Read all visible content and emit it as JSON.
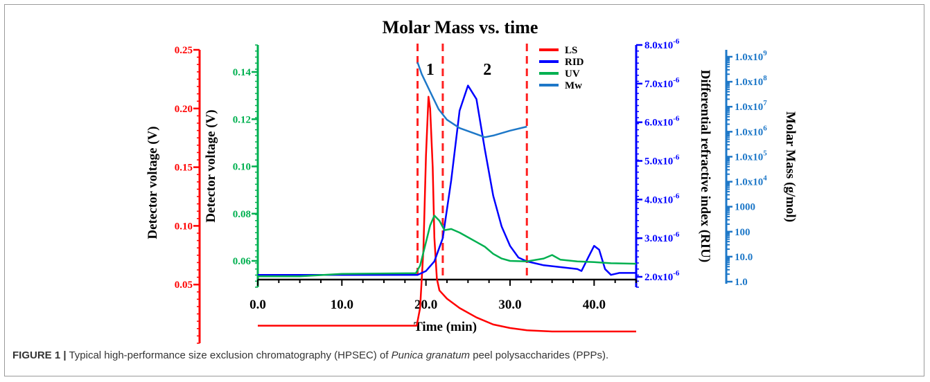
{
  "chart_data": {
    "type": "line",
    "title": "Molar Mass vs. time",
    "xlabel": "Time (min)",
    "x_ticks": [
      "0.0",
      "10.0",
      "20.0",
      "30.0",
      "40.0"
    ],
    "xlim": [
      0,
      45
    ],
    "axes": [
      {
        "id": "ls",
        "label": "Detector voltage (V)",
        "color": "#ff0000",
        "range": [
          0.0,
          0.25
        ],
        "ticks": [
          {
            "v": 0.25,
            "t": "0.25"
          },
          {
            "v": 0.2,
            "t": "0.20"
          },
          {
            "v": 0.15,
            "t": "0.15"
          },
          {
            "v": 0.1,
            "t": "0.10"
          },
          {
            "v": 0.05,
            "t": "0.05"
          }
        ]
      },
      {
        "id": "uv",
        "label": "Detector voltage (V)",
        "color": "#00b050",
        "range": [
          0.05,
          0.15
        ],
        "ticks": [
          {
            "v": 0.14,
            "t": "0.14"
          },
          {
            "v": 0.12,
            "t": "0.12"
          },
          {
            "v": 0.1,
            "t": "0.10"
          },
          {
            "v": 0.08,
            "t": "0.08"
          },
          {
            "v": 0.06,
            "t": "0.06"
          }
        ]
      },
      {
        "id": "rid",
        "label": "Differential refractive index (RIU)",
        "color": "#0000ff",
        "range": [
          1.8e-06,
          8e-06
        ],
        "ticks": [
          {
            "v": 8e-06,
            "t": "8.0x10",
            "e": "-6"
          },
          {
            "v": 7e-06,
            "t": "7.0x10",
            "e": "-6"
          },
          {
            "v": 6e-06,
            "t": "6.0x10",
            "e": "-6"
          },
          {
            "v": 5e-06,
            "t": "5.0x10",
            "e": "-6"
          },
          {
            "v": 4e-06,
            "t": "4.0x10",
            "e": "-6"
          },
          {
            "v": 3e-06,
            "t": "3.0x10",
            "e": "-6"
          },
          {
            "v": 2e-06,
            "t": "2.0x10",
            "e": "-6"
          }
        ]
      },
      {
        "id": "mw",
        "label": "Molar Mass (g/mol)",
        "color": "#1e78c8",
        "scale": "log",
        "range": [
          1,
          1000000000
        ],
        "ticks": [
          {
            "v": 1000000000,
            "t": "1.0x10",
            "e": "9"
          },
          {
            "v": 100000000,
            "t": "1.0x10",
            "e": "8"
          },
          {
            "v": 10000000,
            "t": "1.0x10",
            "e": "7"
          },
          {
            "v": 1000000,
            "t": "1.0x10",
            "e": "6"
          },
          {
            "v": 100000,
            "t": "1.0x10",
            "e": "5"
          },
          {
            "v": 10000,
            "t": "1.0x10",
            "e": "4"
          },
          {
            "v": 1000,
            "t": "1000"
          },
          {
            "v": 100,
            "t": "100"
          },
          {
            "v": 10,
            "t": "10.0"
          },
          {
            "v": 1,
            "t": "1.0"
          }
        ]
      }
    ],
    "regions": [
      {
        "x": 19.0,
        "label": "1"
      },
      {
        "x": 22.0,
        "label": "2"
      },
      {
        "x": 32.0
      }
    ],
    "region_labels": [
      {
        "x": 20.5,
        "text": "1"
      },
      {
        "x": 27.3,
        "text": "2"
      }
    ],
    "series": [
      {
        "name": "LS",
        "axis": "ls",
        "color": "#ff0000",
        "points": [
          [
            0,
            0.015
          ],
          [
            18.9,
            0.015
          ],
          [
            19.3,
            0.03
          ],
          [
            19.7,
            0.08
          ],
          [
            20.0,
            0.16
          ],
          [
            20.3,
            0.21
          ],
          [
            20.5,
            0.2
          ],
          [
            20.8,
            0.15
          ],
          [
            21.0,
            0.09
          ],
          [
            21.3,
            0.055
          ],
          [
            21.6,
            0.045
          ],
          [
            22.5,
            0.038
          ],
          [
            24,
            0.03
          ],
          [
            26,
            0.022
          ],
          [
            28,
            0.016
          ],
          [
            30,
            0.013
          ],
          [
            32,
            0.011
          ],
          [
            35,
            0.01
          ],
          [
            40,
            0.01
          ],
          [
            45,
            0.01
          ]
        ]
      },
      {
        "name": "RID",
        "axis": "rid",
        "color": "#0000ff",
        "points": [
          [
            0,
            2.05e-06
          ],
          [
            19,
            2.05e-06
          ],
          [
            20,
            2.15e-06
          ],
          [
            21,
            2.4e-06
          ],
          [
            22,
            3e-06
          ],
          [
            23,
            4.5e-06
          ],
          [
            24,
            6.3e-06
          ],
          [
            25,
            6.95e-06
          ],
          [
            26,
            6.6e-06
          ],
          [
            27,
            5.3e-06
          ],
          [
            28,
            4.1e-06
          ],
          [
            29,
            3.3e-06
          ],
          [
            30,
            2.8e-06
          ],
          [
            31,
            2.5e-06
          ],
          [
            32,
            2.4e-06
          ],
          [
            34,
            2.3e-06
          ],
          [
            36,
            2.25e-06
          ],
          [
            38,
            2.2e-06
          ],
          [
            38.5,
            2.15e-06
          ],
          [
            39.3,
            2.5e-06
          ],
          [
            40,
            2.8e-06
          ],
          [
            40.6,
            2.7e-06
          ],
          [
            41.3,
            2.2e-06
          ],
          [
            42,
            2.05e-06
          ],
          [
            43,
            2.1e-06
          ],
          [
            45,
            2.1e-06
          ]
        ]
      },
      {
        "name": "UV",
        "axis": "uv",
        "color": "#00b050",
        "points": [
          [
            0,
            0.0535
          ],
          [
            5,
            0.0535
          ],
          [
            10,
            0.0545
          ],
          [
            18.8,
            0.0548
          ],
          [
            19.3,
            0.058
          ],
          [
            19.8,
            0.065
          ],
          [
            20.5,
            0.075
          ],
          [
            21,
            0.0792
          ],
          [
            21.6,
            0.077
          ],
          [
            22.2,
            0.073
          ],
          [
            23,
            0.0735
          ],
          [
            24,
            0.072
          ],
          [
            25,
            0.07
          ],
          [
            26,
            0.068
          ],
          [
            27,
            0.066
          ],
          [
            28,
            0.063
          ],
          [
            29,
            0.061
          ],
          [
            30,
            0.06
          ],
          [
            32,
            0.0598
          ],
          [
            34,
            0.061
          ],
          [
            35,
            0.0625
          ],
          [
            36,
            0.0605
          ],
          [
            38,
            0.0598
          ],
          [
            40,
            0.0595
          ],
          [
            42,
            0.059
          ],
          [
            45,
            0.0588
          ]
        ]
      },
      {
        "name": "Mw",
        "axis": "mw",
        "color": "#1e78c8",
        "points": [
          [
            19.0,
            600000000
          ],
          [
            19.5,
            200000000
          ],
          [
            20.5,
            40000000
          ],
          [
            21.5,
            8000000
          ],
          [
            22.5,
            3000000
          ],
          [
            24,
            1400000
          ],
          [
            26,
            800000
          ],
          [
            27,
            600000
          ],
          [
            28,
            700000
          ],
          [
            30,
            1100000
          ],
          [
            32,
            1600000
          ]
        ]
      }
    ]
  },
  "caption": {
    "label": "FIGURE 1 |",
    "pre": "Typical high-performance size exclusion chromatography (HPSEC) of",
    "species": "Punica granatum",
    "post": "peel polysaccharides (PPPs)."
  }
}
